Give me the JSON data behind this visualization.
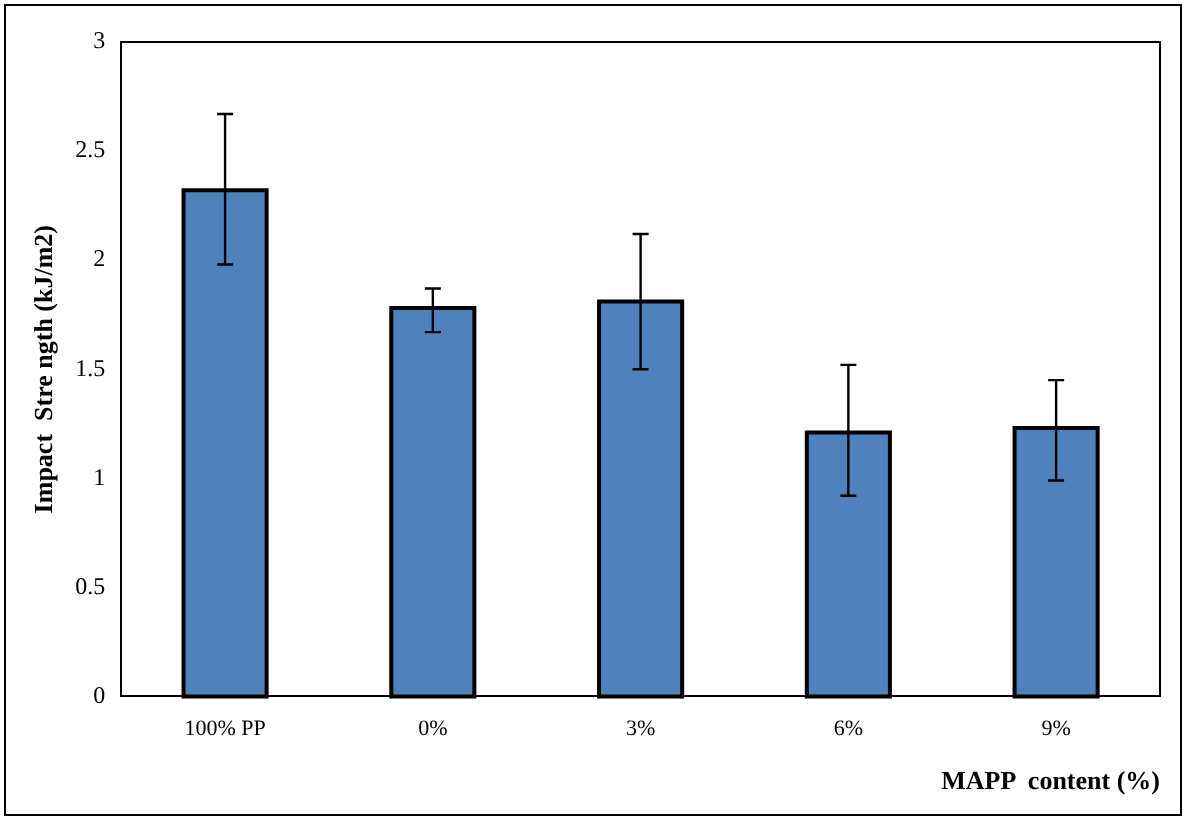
{
  "chart_data": {
    "type": "bar",
    "xlabel": "MAPP  content (%)",
    "ylabel": "Impact  Stre ngth (kJ/m2)",
    "categories": [
      "100% PP",
      "0%",
      "3%",
      "6%",
      "9%"
    ],
    "values": [
      2.32,
      1.78,
      1.81,
      1.21,
      1.23
    ],
    "errors": [
      [
        1.98,
        2.67
      ],
      [
        1.67,
        1.87
      ],
      [
        1.5,
        2.12
      ],
      [
        0.92,
        1.52
      ],
      [
        0.99,
        1.45
      ]
    ],
    "color": "#4f81bd",
    "ylim": [
      0,
      3
    ],
    "yticks": [
      0,
      0.5,
      1,
      1.5,
      2,
      2.5,
      3
    ],
    "grid": false,
    "legend": false
  }
}
